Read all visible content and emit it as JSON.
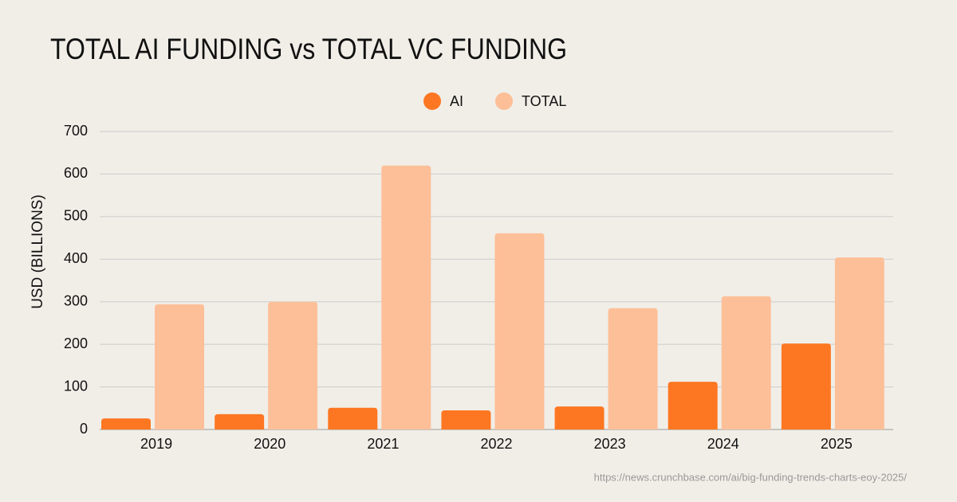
{
  "chart_data": {
    "type": "bar",
    "title": "TOTAL AI FUNDING vs TOTAL VC FUNDING",
    "y_label": "USD (BILLIONS)",
    "source": "https://news.crunchbase.com/ai/big-funding-trends-charts-eoy-2025/",
    "categories": [
      "2019",
      "2020",
      "2021",
      "2022",
      "2023",
      "2024",
      "2025"
    ],
    "series": [
      {
        "name": "AI",
        "color": "#fd7722",
        "values": [
          26,
          36,
          51,
          45,
          54,
          112,
          202
        ]
      },
      {
        "name": "TOTAL",
        "color": "#fdbf98",
        "values": [
          294,
          300,
          620,
          461,
          285,
          313,
          404
        ]
      }
    ],
    "ylim": [
      0,
      700
    ],
    "yticks": [
      0,
      100,
      200,
      300,
      400,
      500,
      600,
      700
    ],
    "grid": true,
    "legend": "top"
  }
}
